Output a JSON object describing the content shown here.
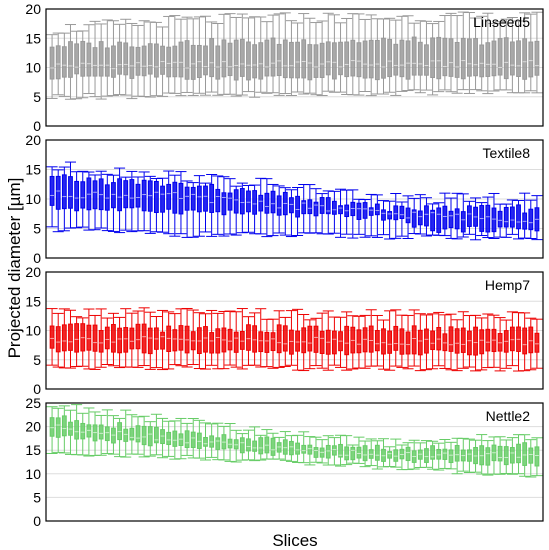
{
  "figure": {
    "ylabel": "Projected diameter [µm]",
    "xlabel": "Slices"
  },
  "chart_data": [
    {
      "type": "box",
      "series_label": "Linseed5",
      "color": "#999999",
      "ylim": [
        0,
        20
      ],
      "yticks": [
        0,
        5,
        10,
        15,
        20
      ],
      "grid": true,
      "n_slices": 80,
      "median_trend": [
        [
          0,
          10.3
        ],
        [
          40,
          10.6
        ],
        [
          79,
          10.6
        ]
      ],
      "q1_trend": [
        [
          0,
          8.5
        ],
        [
          40,
          8.3
        ],
        [
          79,
          8.3
        ]
      ],
      "q3_trend": [
        [
          0,
          13.8
        ],
        [
          40,
          14.5
        ],
        [
          79,
          14.5
        ]
      ],
      "min_trend": [
        [
          0,
          5.0
        ],
        [
          79,
          6.0
        ]
      ],
      "max_trend": [
        [
          0,
          16.5
        ],
        [
          20,
          18.0
        ],
        [
          40,
          18.5
        ],
        [
          79,
          18.5
        ]
      ]
    },
    {
      "type": "box",
      "series_label": "Textile8",
      "color": "#0000ee",
      "ylim": [
        0,
        20
      ],
      "yticks": [
        0,
        5,
        10,
        15,
        20
      ],
      "grid": true,
      "n_slices": 80,
      "median_trend": [
        [
          0,
          10.8
        ],
        [
          20,
          10.5
        ],
        [
          40,
          8.8
        ],
        [
          55,
          7.5
        ],
        [
          79,
          6.5
        ]
      ],
      "q1_trend": [
        [
          0,
          8.5
        ],
        [
          20,
          8.0
        ],
        [
          40,
          7.3
        ],
        [
          55,
          6.8
        ],
        [
          62,
          4.8
        ],
        [
          79,
          5.0
        ]
      ],
      "q3_trend": [
        [
          0,
          13.5
        ],
        [
          20,
          12.5
        ],
        [
          40,
          10.2
        ],
        [
          55,
          8.3
        ],
        [
          79,
          8.3
        ]
      ],
      "min_trend": [
        [
          0,
          5.0
        ],
        [
          20,
          4.0
        ],
        [
          79,
          3.5
        ]
      ],
      "max_trend": [
        [
          0,
          15.5
        ],
        [
          20,
          14.0
        ],
        [
          40,
          12.0
        ],
        [
          55,
          10.0
        ],
        [
          79,
          10.0
        ]
      ]
    },
    {
      "type": "box",
      "series_label": "Hemp7",
      "color": "#ee0000",
      "ylim": [
        0,
        20
      ],
      "yticks": [
        0,
        5,
        10,
        15,
        20
      ],
      "grid": true,
      "n_slices": 80,
      "median_trend": [
        [
          0,
          8.5
        ],
        [
          79,
          8.0
        ]
      ],
      "q1_trend": [
        [
          0,
          6.5
        ],
        [
          79,
          6.2
        ]
      ],
      "q3_trend": [
        [
          0,
          10.5
        ],
        [
          79,
          10.0
        ]
      ],
      "min_trend": [
        [
          0,
          3.8
        ],
        [
          79,
          3.5
        ]
      ],
      "max_trend": [
        [
          0,
          13.0
        ],
        [
          79,
          12.5
        ]
      ]
    },
    {
      "type": "box",
      "series_label": "Nettle2",
      "color": "#66cc66",
      "ylim": [
        0,
        25
      ],
      "yticks": [
        0,
        5,
        10,
        15,
        20,
        25
      ],
      "grid": true,
      "n_slices": 80,
      "median_trend": [
        [
          0,
          20.0
        ],
        [
          15,
          18.0
        ],
        [
          40,
          15.0
        ],
        [
          55,
          14.0
        ],
        [
          79,
          14.0
        ]
      ],
      "q1_trend": [
        [
          0,
          18.0
        ],
        [
          15,
          16.5
        ],
        [
          40,
          14.0
        ],
        [
          55,
          13.0
        ],
        [
          79,
          12.0
        ]
      ],
      "q3_trend": [
        [
          0,
          22.0
        ],
        [
          15,
          19.5
        ],
        [
          40,
          16.5
        ],
        [
          55,
          15.2
        ],
        [
          79,
          16.0
        ]
      ],
      "min_trend": [
        [
          0,
          14.5
        ],
        [
          40,
          12.5
        ],
        [
          79,
          9.5
        ]
      ],
      "max_trend": [
        [
          0,
          24.5
        ],
        [
          15,
          22.0
        ],
        [
          40,
          18.0
        ],
        [
          55,
          16.5
        ],
        [
          79,
          18.0
        ]
      ]
    }
  ]
}
